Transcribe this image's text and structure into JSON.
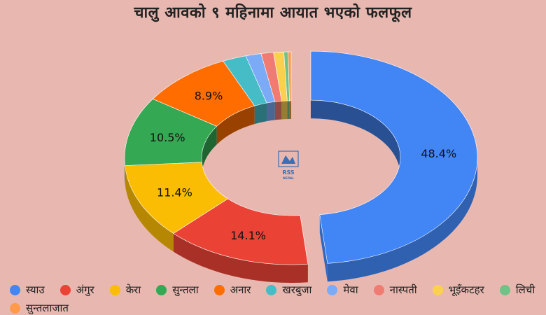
{
  "chart_data": {
    "type": "pie",
    "style": "3d-donut",
    "title": "चालु आवको ९ महिनामा आयात भएको फलफूल",
    "legend_position": "bottom",
    "categories": [
      "स्याउ",
      "अंगुर",
      "केरा",
      "सुन्तला",
      "अनार",
      "खरबुजा",
      "मेवा",
      "नास्पती",
      "भूइँकटहर",
      "लिची",
      "सुन्तलाजात"
    ],
    "values": [
      48.4,
      14.1,
      11.4,
      10.5,
      8.9,
      2.3,
      1.5,
      1.2,
      1.0,
      0.4,
      0.3
    ],
    "labels": [
      "48.4%",
      "14.1%",
      "11.4%",
      "10.5%",
      "8.9%",
      "",
      "",
      "",
      "",
      "",
      ""
    ],
    "colors": [
      "#4285f4",
      "#ea4335",
      "#fbbc04",
      "#34a853",
      "#ff6d01",
      "#46bdc6",
      "#7baaf7",
      "#f07b72",
      "#fcd04f",
      "#71c287",
      "#ff994d"
    ]
  },
  "logo": {
    "name": "rss-nepal-logo",
    "text_top": "RSS",
    "text_bottom": "NEPAL"
  }
}
